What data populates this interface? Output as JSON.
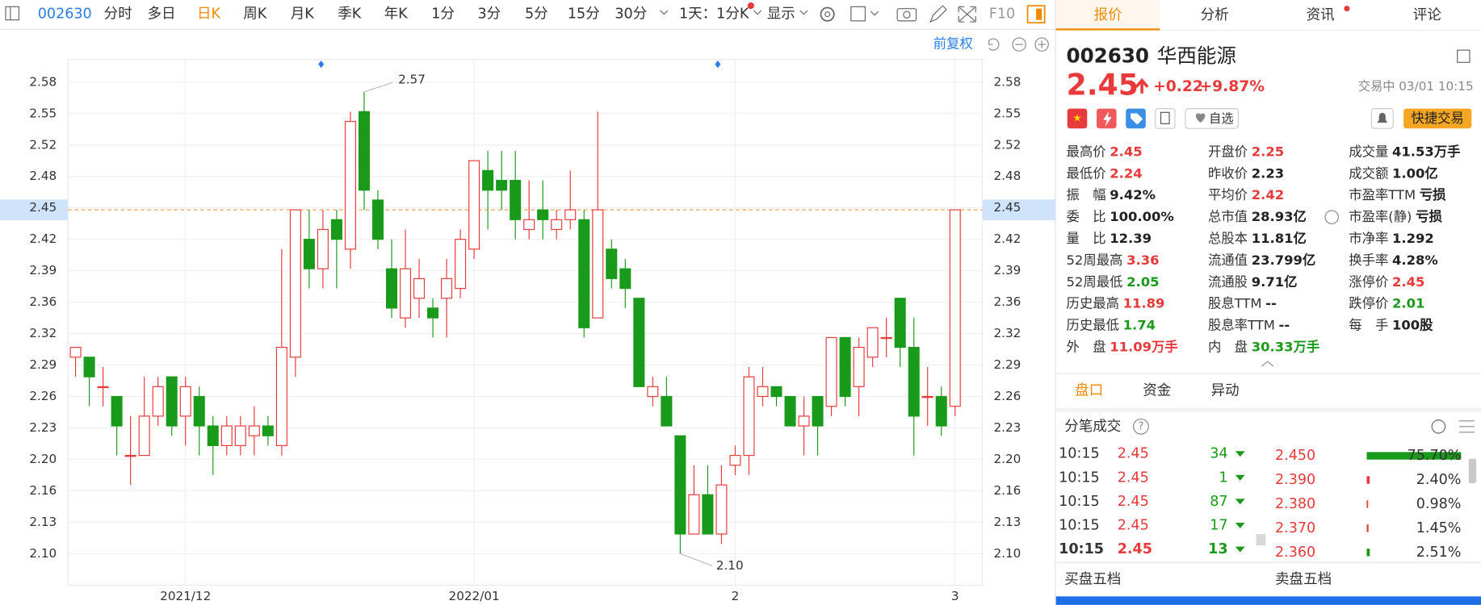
{
  "toolbar": {
    "code": "002630",
    "periods": [
      "分时",
      "多日",
      "日K",
      "周K",
      "月K",
      "季K",
      "年K",
      "1分",
      "3分",
      "5分",
      "15分",
      "30分"
    ],
    "active_period_index": 2,
    "kline_setting": "1天：1分K",
    "display": "显示",
    "f10": "F10"
  },
  "chart_data": {
    "type": "candlestick",
    "adjust": "前复权",
    "categories": [
      null,
      null,
      null,
      null,
      null,
      null,
      null,
      null,
      "2021/12",
      null,
      null,
      null,
      null,
      null,
      null,
      null,
      null,
      null,
      null,
      null,
      null,
      null,
      null,
      null,
      null,
      null,
      null,
      null,
      null,
      "2022/01",
      null,
      null,
      null,
      null,
      null,
      null,
      null,
      null,
      null,
      null,
      null,
      null,
      null,
      null,
      null,
      null,
      null,
      null,
      "2",
      null,
      null,
      null,
      null,
      null,
      null,
      null,
      null,
      null,
      null,
      null,
      null,
      null,
      null,
      null,
      "3"
    ],
    "open": [
      2.3,
      2.3,
      2.27,
      2.26,
      2.2,
      2.2,
      2.24,
      2.28,
      2.24,
      2.26,
      2.23,
      2.21,
      2.21,
      2.22,
      2.23,
      2.21,
      2.3,
      2.42,
      2.39,
      2.44,
      2.41,
      2.55,
      2.46,
      2.39,
      2.34,
      2.36,
      2.35,
      2.36,
      2.37,
      2.41,
      2.49,
      2.48,
      2.48,
      2.43,
      2.45,
      2.43,
      2.44,
      2.44,
      2.34,
      2.41,
      2.39,
      2.36,
      2.26,
      2.26,
      2.22,
      2.12,
      2.16,
      2.12,
      2.19,
      2.2,
      2.26,
      2.27,
      2.26,
      2.23,
      2.26,
      2.25,
      2.32,
      2.27,
      2.3,
      2.32,
      2.36,
      2.31,
      2.26,
      2.26,
      2.25
    ],
    "high": [
      2.31,
      2.3,
      2.29,
      2.26,
      2.24,
      2.28,
      2.28,
      2.28,
      2.28,
      2.27,
      2.24,
      2.24,
      2.24,
      2.25,
      2.24,
      2.41,
      2.45,
      2.45,
      2.45,
      2.45,
      2.55,
      2.57,
      2.47,
      2.42,
      2.43,
      2.4,
      2.36,
      2.4,
      2.43,
      2.5,
      2.51,
      2.51,
      2.51,
      2.48,
      2.48,
      2.45,
      2.49,
      2.45,
      2.55,
      2.42,
      2.4,
      2.36,
      2.28,
      2.28,
      2.22,
      2.19,
      2.19,
      2.19,
      2.21,
      2.29,
      2.29,
      2.27,
      2.26,
      2.26,
      2.26,
      2.32,
      2.32,
      2.32,
      2.33,
      2.34,
      2.36,
      2.34,
      2.29,
      2.27,
      2.45
    ],
    "low": [
      2.28,
      2.25,
      2.25,
      2.2,
      2.17,
      2.2,
      2.23,
      2.22,
      2.21,
      2.2,
      2.18,
      2.2,
      2.2,
      2.2,
      2.21,
      2.2,
      2.28,
      2.37,
      2.37,
      2.37,
      2.39,
      2.45,
      2.41,
      2.34,
      2.33,
      2.34,
      2.32,
      2.32,
      2.36,
      2.4,
      2.43,
      2.45,
      2.42,
      2.42,
      2.42,
      2.42,
      2.43,
      2.32,
      2.34,
      2.37,
      2.35,
      2.27,
      2.25,
      2.23,
      2.1,
      2.12,
      2.12,
      2.11,
      2.18,
      2.18,
      2.25,
      2.25,
      2.23,
      2.2,
      2.2,
      2.24,
      2.25,
      2.24,
      2.29,
      2.3,
      2.29,
      2.2,
      2.23,
      2.22,
      2.24
    ],
    "close": [
      2.31,
      2.28,
      2.27,
      2.23,
      2.2,
      2.24,
      2.27,
      2.23,
      2.27,
      2.23,
      2.21,
      2.23,
      2.23,
      2.23,
      2.22,
      2.31,
      2.45,
      2.39,
      2.43,
      2.42,
      2.54,
      2.47,
      2.42,
      2.35,
      2.39,
      2.38,
      2.34,
      2.38,
      2.42,
      2.5,
      2.47,
      2.47,
      2.44,
      2.44,
      2.44,
      2.44,
      2.45,
      2.33,
      2.45,
      2.38,
      2.37,
      2.27,
      2.27,
      2.23,
      2.12,
      2.16,
      2.12,
      2.17,
      2.2,
      2.28,
      2.27,
      2.26,
      2.23,
      2.24,
      2.23,
      2.32,
      2.26,
      2.31,
      2.33,
      2.32,
      2.31,
      2.24,
      2.26,
      2.23,
      2.45
    ],
    "up_color": "#e8393b",
    "down_color": "#1a9a1a",
    "ylim": [
      2.068,
      2.603
    ],
    "yticks": [
      {
        "value": 2.1,
        "label": "2.10"
      },
      {
        "value": 2.132,
        "label": "2.13"
      },
      {
        "value": 2.164,
        "label": "2.16"
      },
      {
        "value": 2.196,
        "label": "2.20"
      },
      {
        "value": 2.228,
        "label": "2.23"
      },
      2.26,
      {
        "value": 2.292,
        "label": "2.29"
      },
      {
        "value": 2.324,
        "label": "2.32"
      },
      {
        "value": 2.356,
        "label": "2.36"
      },
      {
        "value": 2.388,
        "label": "2.39"
      },
      2.42,
      {
        "value": 2.452,
        "label": "2.45"
      },
      {
        "value": 2.484,
        "label": "2.48"
      },
      {
        "value": 2.516,
        "label": "2.52"
      },
      {
        "value": 2.548,
        "label": "2.55"
      },
      2.58
    ],
    "current_price": 2.45,
    "high_annotation": 2.57,
    "low_annotation": {
      "value": 2.1,
      "label": "2.10"
    },
    "grid": true
  },
  "quote": {
    "tabs": [
      "报价",
      "分析",
      "资讯",
      "评论"
    ],
    "code": "002630",
    "name": "华西能源",
    "price": "2.45",
    "change": "+0.22",
    "change_pct": "+9.87%",
    "status": "交易中 03/01 10:15",
    "watch": "自选",
    "trade": "快捷交易",
    "stats": [
      [
        {
          "label": "最高价",
          "value": "2.45",
          "color": "#e8393b"
        },
        {
          "label": "最低价",
          "value": "2.24",
          "color": "#e8393b"
        },
        {
          "label": "振　幅",
          "value": "9.42%",
          "color": "#222"
        },
        {
          "label": "委　比",
          "value": "100.00%",
          "color": "#222"
        },
        {
          "label": "量　比",
          "value": "12.39",
          "color": "#222"
        },
        {
          "label": "52周最高",
          "value": "3.36",
          "color": "#e8393b"
        },
        {
          "label": "52周最低",
          "value": "2.05",
          "color": "#1a9a1a"
        },
        {
          "label": "历史最高",
          "value": "11.89",
          "color": "#e8393b"
        },
        {
          "label": "历史最低",
          "value": "1.74",
          "color": "#1a9a1a"
        },
        {
          "label": "外　盘",
          "value": "11.09万手",
          "color": "#e8393b"
        }
      ],
      [
        {
          "label": "开盘价",
          "value": "2.25",
          "color": "#e8393b"
        },
        {
          "label": "昨收价",
          "value": "2.23",
          "color": "#222"
        },
        {
          "label": "平均价",
          "value": "2.42",
          "color": "#e8393b"
        },
        {
          "label": "总市值",
          "value": "28.93亿",
          "color": "#222"
        },
        {
          "label": "总股本",
          "value": "11.81亿",
          "color": "#222"
        },
        {
          "label": "流通值",
          "value": "23.799亿",
          "color": "#222"
        },
        {
          "label": "流通股",
          "value": "9.71亿",
          "color": "#222"
        },
        {
          "label": "股息TTM",
          "value": "--",
          "color": "#222"
        },
        {
          "label": "股息率TTM",
          "value": "--",
          "color": "#222"
        },
        {
          "label": "内　盘",
          "value": "30.33万手",
          "color": "#1a9a1a"
        }
      ],
      [
        {
          "label": "成交量",
          "value": "41.53万手",
          "color": "#222"
        },
        {
          "label": "成交额",
          "value": "1.00亿",
          "color": "#222"
        },
        {
          "label": "市盈率TTM",
          "value": "亏损",
          "color": "#222"
        },
        {
          "label": "市盈率(静)",
          "value": "亏损",
          "color": "#222"
        },
        {
          "label": "市净率",
          "value": "1.292",
          "color": "#222"
        },
        {
          "label": "换手率",
          "value": "4.28%",
          "color": "#222"
        },
        {
          "label": "涨停价",
          "value": "2.45",
          "color": "#e8393b"
        },
        {
          "label": "跌停价",
          "value": "2.01",
          "color": "#1a9a1a"
        },
        {
          "label": "每　手",
          "value": "100股",
          "color": "#222"
        }
      ]
    ]
  },
  "detail": {
    "tabs": [
      "盘口",
      "资金",
      "异动"
    ],
    "title": "分笔成交",
    "trades": [
      [
        "10:15",
        "2.45",
        "34"
      ],
      [
        "10:15",
        "2.45",
        "1"
      ],
      [
        "10:15",
        "2.45",
        "87"
      ],
      [
        "10:15",
        "2.45",
        "17"
      ],
      [
        "10:15",
        "2.45",
        "13"
      ]
    ],
    "distribution": {
      "prices": [
        "2.450",
        "2.390",
        "2.380",
        "2.370",
        "2.360"
      ],
      "pct": [
        75.7,
        2.4,
        0.98,
        1.45,
        2.51
      ],
      "pct_labels": [
        "75.70%",
        "2.40%",
        "0.98%",
        "1.45%",
        "2.51%"
      ],
      "colors": [
        "#1a9a1a",
        "#e8393b",
        "#e8393b",
        "#e8393b",
        "#1a9a1a"
      ]
    },
    "buy_title": "买盘五档",
    "sell_title": "卖盘五档"
  }
}
